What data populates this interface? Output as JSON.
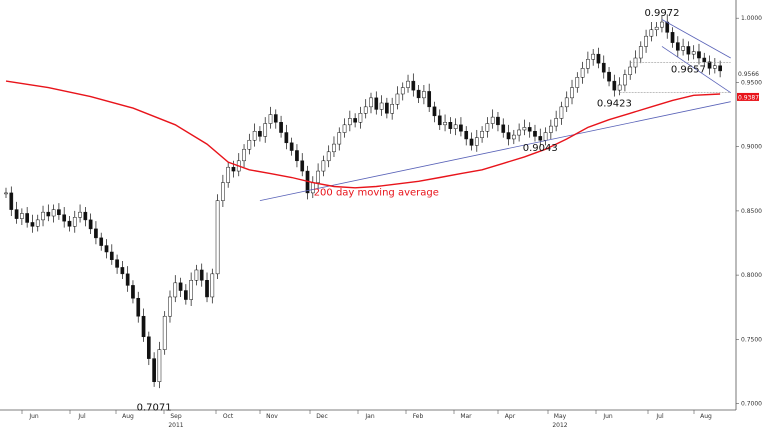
{
  "chart_data": {
    "type": "candlestick",
    "series": [
      {
        "kind": "ohlc",
        "points": [
          [
            0,
            0.864
          ],
          [
            1,
            0.851
          ],
          [
            2,
            0.844
          ],
          [
            3,
            0.848
          ],
          [
            4,
            0.841
          ],
          [
            5,
            0.838
          ],
          [
            6,
            0.843
          ],
          [
            7,
            0.849
          ],
          [
            8,
            0.846
          ],
          [
            9,
            0.851
          ],
          [
            10,
            0.847
          ],
          [
            11,
            0.842
          ],
          [
            12,
            0.838
          ],
          [
            13,
            0.845
          ],
          [
            14,
            0.849
          ],
          [
            15,
            0.843
          ],
          [
            16,
            0.836
          ],
          [
            17,
            0.829
          ],
          [
            18,
            0.823
          ],
          [
            19,
            0.818
          ],
          [
            20,
            0.812
          ],
          [
            21,
            0.806
          ],
          [
            22,
            0.801
          ],
          [
            23,
            0.792
          ],
          [
            24,
            0.782
          ],
          [
            25,
            0.768
          ],
          [
            26,
            0.752
          ],
          [
            27,
            0.735
          ],
          [
            28,
            0.717
          ],
          [
            29,
            0.742
          ],
          [
            30,
            0.768
          ],
          [
            31,
            0.783
          ],
          [
            32,
            0.794
          ],
          [
            33,
            0.788
          ],
          [
            34,
            0.781
          ],
          [
            35,
            0.796
          ],
          [
            36,
            0.804
          ],
          [
            37,
            0.796
          ],
          [
            38,
            0.783
          ],
          [
            39,
            0.801
          ],
          [
            40,
            0.858
          ],
          [
            41,
            0.872
          ],
          [
            42,
            0.884
          ],
          [
            43,
            0.881
          ],
          [
            44,
            0.889
          ],
          [
            45,
            0.898
          ],
          [
            46,
            0.905
          ],
          [
            47,
            0.912
          ],
          [
            48,
            0.908
          ],
          [
            49,
            0.918
          ],
          [
            50,
            0.925
          ],
          [
            51,
            0.919
          ],
          [
            52,
            0.911
          ],
          [
            53,
            0.903
          ],
          [
            54,
            0.897
          ],
          [
            55,
            0.889
          ],
          [
            56,
            0.881
          ],
          [
            57,
            0.864
          ],
          [
            58,
            0.872
          ],
          [
            59,
            0.881
          ],
          [
            60,
            0.889
          ],
          [
            61,
            0.896
          ],
          [
            62,
            0.902
          ],
          [
            63,
            0.911
          ],
          [
            64,
            0.917
          ],
          [
            65,
            0.922
          ],
          [
            66,
            0.919
          ],
          [
            67,
            0.926
          ],
          [
            68,
            0.931
          ],
          [
            69,
            0.938
          ],
          [
            70,
            0.929
          ],
          [
            71,
            0.934
          ],
          [
            72,
            0.926
          ],
          [
            73,
            0.933
          ],
          [
            74,
            0.941
          ],
          [
            75,
            0.946
          ],
          [
            76,
            0.951
          ],
          [
            77,
            0.944
          ],
          [
            78,
            0.938
          ],
          [
            79,
            0.943
          ],
          [
            80,
            0.931
          ],
          [
            81,
            0.924
          ],
          [
            82,
            0.917
          ],
          [
            83,
            0.919
          ],
          [
            84,
            0.914
          ],
          [
            85,
            0.917
          ],
          [
            86,
            0.912
          ],
          [
            87,
            0.906
          ],
          [
            88,
            0.901
          ],
          [
            89,
            0.907
          ],
          [
            90,
            0.912
          ],
          [
            91,
            0.918
          ],
          [
            92,
            0.923
          ],
          [
            93,
            0.917
          ],
          [
            94,
            0.911
          ],
          [
            95,
            0.906
          ],
          [
            96,
            0.909
          ],
          [
            97,
            0.913
          ],
          [
            98,
            0.915
          ],
          [
            99,
            0.912
          ],
          [
            100,
            0.908
          ],
          [
            101,
            0.905
          ],
          [
            102,
            0.911
          ],
          [
            103,
            0.916
          ],
          [
            104,
            0.922
          ],
          [
            105,
            0.931
          ],
          [
            106,
            0.938
          ],
          [
            107,
            0.946
          ],
          [
            108,
            0.954
          ],
          [
            109,
            0.961
          ],
          [
            110,
            0.968
          ],
          [
            111,
            0.972
          ],
          [
            112,
            0.965
          ],
          [
            113,
            0.958
          ],
          [
            114,
            0.951
          ],
          [
            115,
            0.944
          ],
          [
            116,
            0.948
          ],
          [
            117,
            0.956
          ],
          [
            118,
            0.962
          ],
          [
            119,
            0.969
          ],
          [
            120,
            0.978
          ],
          [
            121,
            0.986
          ],
          [
            122,
            0.991
          ],
          [
            123,
            0.993
          ],
          [
            124,
            0.997
          ],
          [
            125,
            0.989
          ],
          [
            126,
            0.981
          ],
          [
            127,
            0.975
          ],
          [
            128,
            0.978
          ],
          [
            129,
            0.972
          ],
          [
            130,
            0.974
          ],
          [
            131,
            0.969
          ],
          [
            132,
            0.966
          ],
          [
            133,
            0.961
          ],
          [
            134,
            0.963
          ],
          [
            135,
            0.959
          ]
        ]
      },
      {
        "name": "200 day moving average",
        "kind": "line",
        "color": "#e8141b",
        "points": [
          [
            0,
            0.951
          ],
          [
            8,
            0.946
          ],
          [
            16,
            0.939
          ],
          [
            24,
            0.93
          ],
          [
            32,
            0.917
          ],
          [
            38,
            0.902
          ],
          [
            42,
            0.888
          ],
          [
            46,
            0.882
          ],
          [
            50,
            0.879
          ],
          [
            54,
            0.876
          ],
          [
            58,
            0.872
          ],
          [
            62,
            0.869
          ],
          [
            66,
            0.868
          ],
          [
            70,
            0.869
          ],
          [
            74,
            0.871
          ],
          [
            78,
            0.873
          ],
          [
            82,
            0.876
          ],
          [
            86,
            0.879
          ],
          [
            90,
            0.882
          ],
          [
            94,
            0.887
          ],
          [
            98,
            0.892
          ],
          [
            102,
            0.898
          ],
          [
            106,
            0.906
          ],
          [
            110,
            0.915
          ],
          [
            114,
            0.921
          ],
          [
            118,
            0.926
          ],
          [
            122,
            0.931
          ],
          [
            126,
            0.936
          ],
          [
            130,
            0.94
          ],
          [
            135,
            0.941
          ]
        ]
      }
    ],
    "annotations": [
      {
        "text": "0.7071",
        "x": 28,
        "y": 0.7071
      },
      {
        "text": "0.9043",
        "x": 101,
        "y": 0.9043
      },
      {
        "text": "0.9423",
        "x": 115,
        "y": 0.9423
      },
      {
        "text": "0.9972",
        "x": 124,
        "y": 0.9972
      },
      {
        "text": "0.9657",
        "x": 129,
        "y": 0.9657
      },
      {
        "text": "200 day moving average",
        "x": 70,
        "y": 0.862
      }
    ],
    "price_labels": [
      {
        "text": "0.9566",
        "y": 0.9566,
        "style": "plain"
      },
      {
        "text": "0.9387",
        "y": 0.9387,
        "style": "red-box"
      }
    ],
    "trendlines": [
      {
        "from": [
          48,
          0.858
        ],
        "to": [
          137,
          0.935
        ],
        "color": "#5a63b8"
      },
      {
        "from": [
          124,
          0.999
        ],
        "to": [
          137,
          0.969
        ],
        "color": "#5a63b8"
      },
      {
        "from": [
          124,
          0.978
        ],
        "to": [
          137,
          0.942
        ],
        "color": "#5a63b8"
      }
    ],
    "support_lines": [
      {
        "from": [
          116,
          0.9423
        ],
        "to": [
          137,
          0.9423
        ]
      },
      {
        "from": [
          118,
          0.9657
        ],
        "to": [
          137,
          0.9657
        ]
      }
    ],
    "x_ticks": [
      "Jun",
      "Jul",
      "Aug",
      "Sep",
      "Oct",
      "Nov",
      "Dec",
      "Jan",
      "Feb",
      "Mar",
      "Apr",
      "May",
      "Jun",
      "Jul",
      "Aug"
    ],
    "year_labels": [
      {
        "text": "2011",
        "at": 3
      },
      {
        "text": "2012",
        "at": 11
      }
    ],
    "y_ticks": [
      "1.0000",
      "0.9500",
      "0.9000",
      "0.8500",
      "0.8000",
      "0.7500",
      "0.7000"
    ],
    "ylim": [
      0.695,
      1.0095
    ],
    "xlim": [
      0,
      138
    ],
    "grid": false,
    "colors": {
      "up": "#ffffff",
      "down": "#111111",
      "ma": "#e8141b",
      "trend": "#5a63b8"
    }
  }
}
